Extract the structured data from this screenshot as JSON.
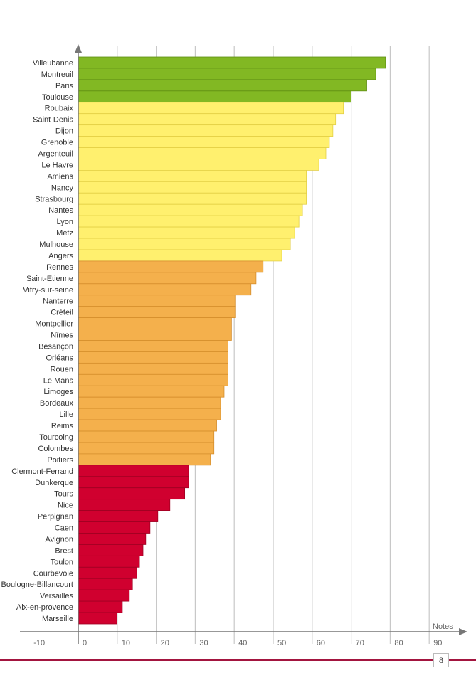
{
  "chart_data": {
    "type": "bar",
    "orientation": "horizontal",
    "title": "",
    "xlabel": "Notes",
    "ylabel": "",
    "xlim": [
      -10,
      90
    ],
    "xticks": [
      -10,
      0,
      10,
      20,
      30,
      40,
      50,
      60,
      70,
      80,
      90
    ],
    "grid": true,
    "categories": [
      "Villeubanne",
      "Montreuil",
      "Paris",
      "Toulouse",
      "Roubaix",
      "Saint-Denis",
      "Dijon",
      "Grenoble",
      "Argenteuil",
      "Le Havre",
      "Amiens",
      "Nancy",
      "Strasbourg",
      "Nantes",
      "Lyon",
      "Metz",
      "Mulhouse",
      "Angers",
      "Rennes",
      "Saint-Etienne",
      "Vitry-sur-seine",
      "Nanterre",
      "Créteil",
      "Montpellier",
      "Nîmes",
      "Besançon",
      "Orléans",
      "Rouen",
      "Le Mans",
      "Limoges",
      "Bordeaux",
      "Lille",
      "Reims",
      "Tourcoing",
      "Colombes",
      "Poitiers",
      "Clermont-Ferrand",
      "Dunkerque",
      "Tours",
      "Nice",
      "Perpignan",
      "Caen",
      "Avignon",
      "Brest",
      "Toulon",
      "Courbevoie",
      "Boulogne-Billancourt",
      "Versailles",
      "Aix-en-provence",
      "Marseille"
    ],
    "values": [
      78.8,
      76.3,
      74,
      70,
      68,
      66,
      65.3,
      64.4,
      63.5,
      61.7,
      58.5,
      58.5,
      58.5,
      57.5,
      56.6,
      55.5,
      54.4,
      52.2,
      47.4,
      45.6,
      44.3,
      40.2,
      40.2,
      39.3,
      39.3,
      38.4,
      38.4,
      38.4,
      38.4,
      37.4,
      36.5,
      36.5,
      35.5,
      34.8,
      34.8,
      33.9,
      28.3,
      28.3,
      27.3,
      23.5,
      20.4,
      18.4,
      17.3,
      16.6,
      15.7,
      15,
      13.9,
      13.1,
      11.3,
      9.9
    ],
    "groups": [
      {
        "from": 0,
        "to": 3,
        "color": "#82b823",
        "border": "#5f8e14"
      },
      {
        "from": 4,
        "to": 17,
        "color": "#fff06e",
        "border": "#e3cf45"
      },
      {
        "from": 18,
        "to": 35,
        "color": "#f4b04c",
        "border": "#d58e2c"
      },
      {
        "from": 36,
        "to": 49,
        "color": "#d0002f",
        "border": "#9e0022"
      }
    ]
  },
  "page_number": "8",
  "colors": {
    "footer_line": "#a3153f",
    "grid": "#c8c8c8",
    "axis": "#777777"
  }
}
